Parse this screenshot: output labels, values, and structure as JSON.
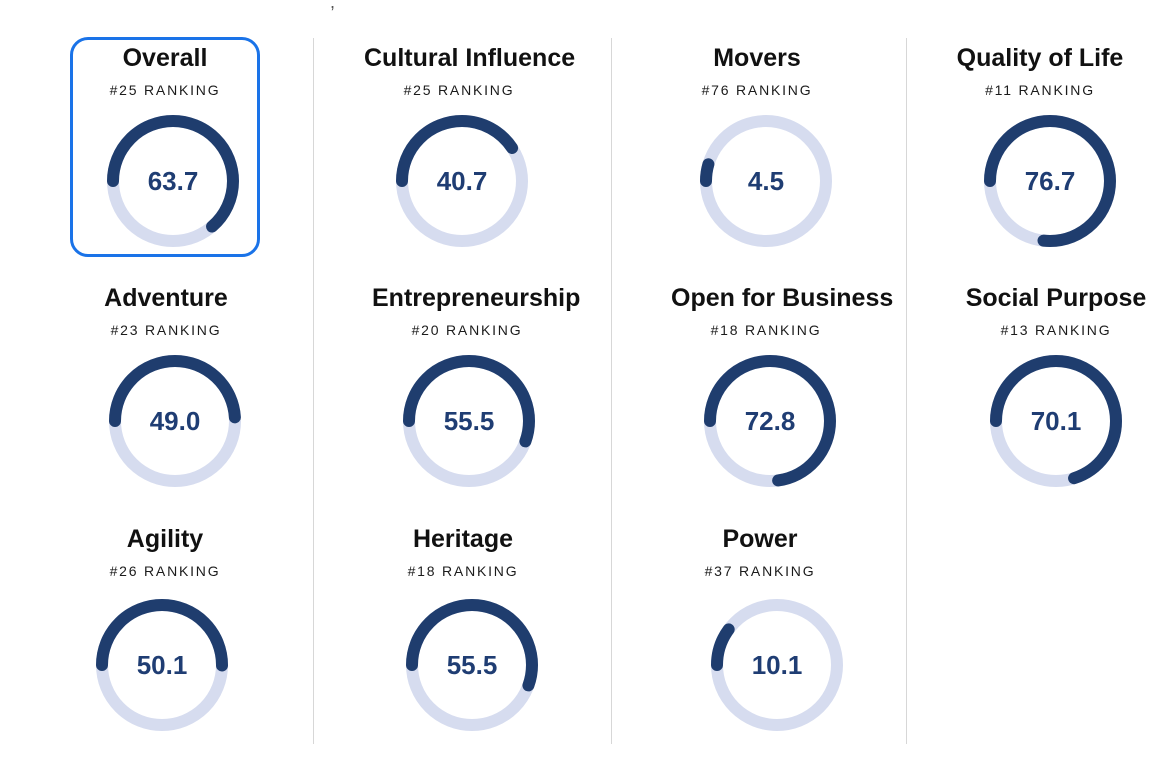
{
  "header": {
    "cut_off_text": ", "
  },
  "colors": {
    "selected_border": "#1a73e8",
    "gauge_fill": "#1f3d6e",
    "gauge_track": "#d6dcef",
    "score_text": "#1f3d73",
    "divider": "#d7d7d7"
  },
  "categories": [
    {
      "title": "Overall",
      "ranking": "#25 RANKING",
      "score": "63.7",
      "value": 63.7,
      "selected": true
    },
    {
      "title": "Cultural Influence",
      "ranking": "#25 RANKING",
      "score": "40.7",
      "value": 40.7,
      "selected": false
    },
    {
      "title": "Movers",
      "ranking": "#76 RANKING",
      "score": "4.5",
      "value": 4.5,
      "selected": false
    },
    {
      "title": "Quality of Life",
      "ranking": "#11 RANKING",
      "score": "76.7",
      "value": 76.7,
      "selected": false
    },
    {
      "title": "Adventure",
      "ranking": "#23 RANKING",
      "score": "49.0",
      "value": 49.0,
      "selected": false
    },
    {
      "title": "Entrepreneurship",
      "ranking": "#20 RANKING",
      "score": "55.5",
      "value": 55.5,
      "selected": false
    },
    {
      "title": "Open for Business",
      "ranking": "#18 RANKING",
      "score": "72.8",
      "value": 72.8,
      "selected": false
    },
    {
      "title": "Social Purpose",
      "ranking": "#13 RANKING",
      "score": "70.1",
      "value": 70.1,
      "selected": false
    },
    {
      "title": "Agility",
      "ranking": "#26 RANKING",
      "score": "50.1",
      "value": 50.1,
      "selected": false
    },
    {
      "title": "Heritage",
      "ranking": "#18 RANKING",
      "score": "55.5",
      "value": 55.5,
      "selected": false
    },
    {
      "title": "Power",
      "ranking": "#37 RANKING",
      "score": "10.1",
      "value": 10.1,
      "selected": false
    }
  ]
}
